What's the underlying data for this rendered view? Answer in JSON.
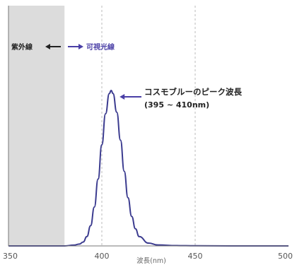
{
  "chart_data": {
    "type": "line",
    "title": "",
    "xlabel": "波長(nm)",
    "ylabel": "",
    "xlim": [
      350,
      500
    ],
    "ylim": [
      0,
      1
    ],
    "xticks": [
      "350",
      "400",
      "450",
      "500"
    ],
    "grid_x": [
      400,
      450
    ],
    "series": [
      {
        "name": "",
        "color": "#3b3b8f",
        "x": [
          350,
          370,
          380,
          385,
          388,
          390,
          392,
          394,
          396,
          398,
          400,
          402,
          404,
          405,
          406,
          408,
          410,
          412,
          414,
          416,
          418,
          420,
          425,
          430,
          440,
          450,
          470,
          500
        ],
        "y": [
          0,
          0,
          0,
          0.005,
          0.012,
          0.025,
          0.06,
          0.13,
          0.25,
          0.43,
          0.65,
          0.85,
          0.98,
          1.0,
          0.98,
          0.86,
          0.68,
          0.48,
          0.31,
          0.19,
          0.11,
          0.06,
          0.018,
          0.006,
          0.002,
          0.001,
          0,
          0
        ]
      }
    ],
    "shaded_region": {
      "from": 350,
      "to": 380,
      "color": "#dcdcdc"
    },
    "annotations": {
      "uv": "紫外線",
      "visible": "可視光線",
      "peak_line1": "コスモブルーのピーク波長",
      "peak_line2": "(395 ~ 410nm)"
    }
  },
  "colors": {
    "axis": "#777777",
    "grid": "#bbbbbb",
    "curve": "#3b3b8f",
    "arrow_uv": "#222222",
    "arrow_vis": "#4a3fa6"
  }
}
